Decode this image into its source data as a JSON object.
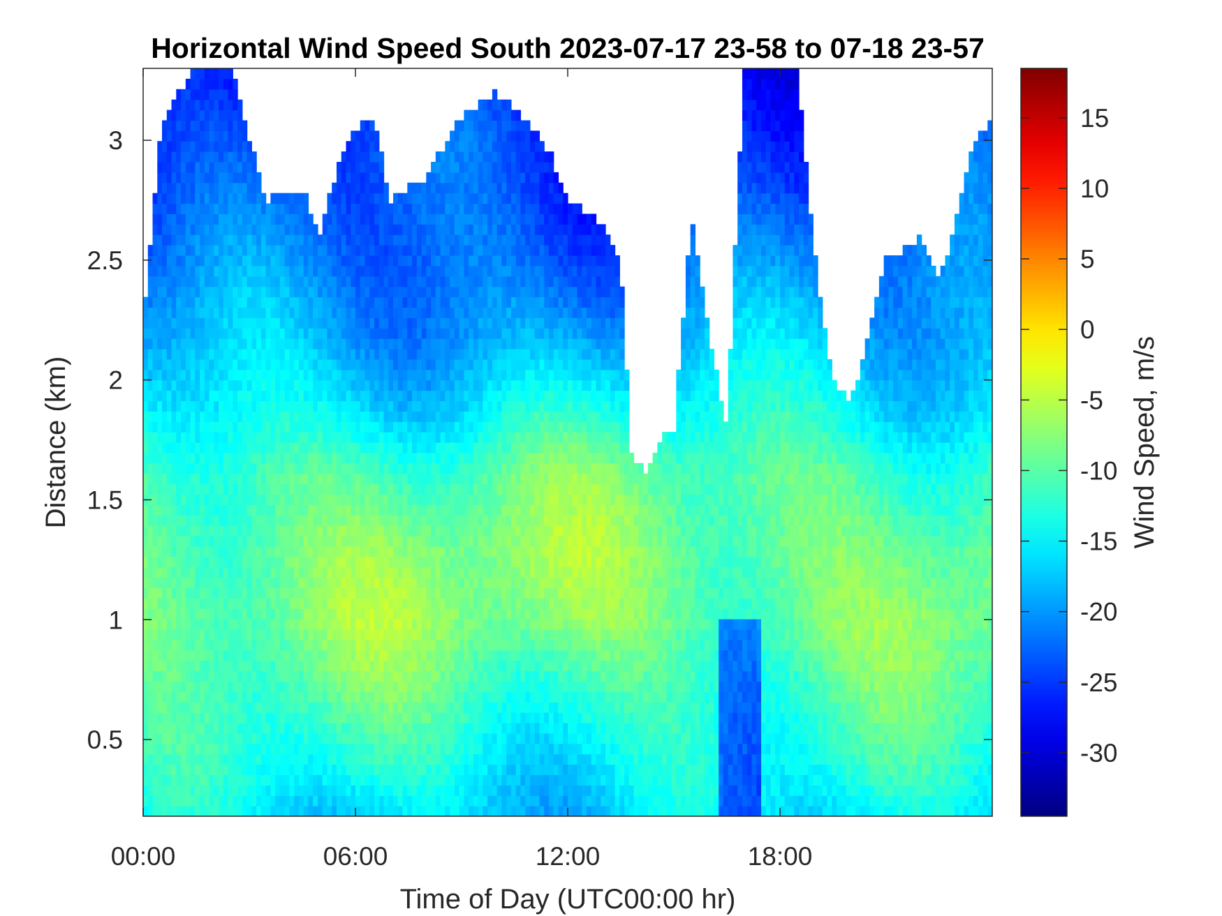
{
  "chart_data": {
    "type": "heatmap",
    "title": "Horizontal Wind Speed South 2023-07-17 23-58 to 07-18 23-57",
    "xlabel": "Time of Day (UTC00:00 hr)",
    "ylabel": "Distance (km)",
    "colorbar_label": "Wind Speed, m/s",
    "colormap": "jet",
    "x_ticks": [
      "00:00",
      "06:00",
      "12:00",
      "18:00"
    ],
    "x_tick_hours": [
      0,
      6,
      12,
      18
    ],
    "xlim_hours": [
      0,
      24
    ],
    "y_ticks": [
      "0.5",
      "1",
      "1.5",
      "2",
      "2.5",
      "3"
    ],
    "y_tick_values": [
      0.5,
      1,
      1.5,
      2,
      2.5,
      3
    ],
    "ylim_km": [
      0.18,
      3.3
    ],
    "colorbar_ticks": [
      "15",
      "10",
      "5",
      "0",
      "-5",
      "-10",
      "-15",
      "-20",
      "-25",
      "-30"
    ],
    "colorbar_tick_values": [
      15,
      10,
      5,
      0,
      -5,
      -10,
      -15,
      -20,
      -25,
      -30
    ],
    "color_range": [
      -34.5,
      18.5
    ],
    "upper_data_limit_km": [
      [
        0,
        2.25
      ],
      [
        0.5,
        3.05
      ],
      [
        1.0,
        3.2
      ],
      [
        1.5,
        3.3
      ],
      [
        2.5,
        3.3
      ],
      [
        3.0,
        3.0
      ],
      [
        3.5,
        2.75
      ],
      [
        4.5,
        2.8
      ],
      [
        5.0,
        2.6
      ],
      [
        5.5,
        2.9
      ],
      [
        6.0,
        3.05
      ],
      [
        6.5,
        3.1
      ],
      [
        7.0,
        2.75
      ],
      [
        8.0,
        2.85
      ],
      [
        9.0,
        3.1
      ],
      [
        10.0,
        3.2
      ],
      [
        11.0,
        3.05
      ],
      [
        11.5,
        2.95
      ],
      [
        12.0,
        2.75
      ],
      [
        12.5,
        2.7
      ],
      [
        13.0,
        2.65
      ],
      [
        13.5,
        2.5
      ],
      [
        13.8,
        1.7
      ],
      [
        14.2,
        1.6
      ],
      [
        14.6,
        1.75
      ],
      [
        15.0,
        1.8
      ],
      [
        15.5,
        2.7
      ],
      [
        16.0,
        2.2
      ],
      [
        16.5,
        1.8
      ],
      [
        16.8,
        2.8
      ],
      [
        17.0,
        3.3
      ],
      [
        18.5,
        3.3
      ],
      [
        19.0,
        2.5
      ],
      [
        19.5,
        2.0
      ],
      [
        20.0,
        1.9
      ],
      [
        21.0,
        2.5
      ],
      [
        22.0,
        2.6
      ],
      [
        22.5,
        2.4
      ],
      [
        23.0,
        2.7
      ],
      [
        23.5,
        3.0
      ],
      [
        24.0,
        3.1
      ]
    ],
    "mean_profile_ms": [
      [
        0.2,
        -16
      ],
      [
        0.5,
        -13
      ],
      [
        0.8,
        -10
      ],
      [
        1.0,
        -8
      ],
      [
        1.3,
        -8
      ],
      [
        1.6,
        -10
      ],
      [
        1.9,
        -15
      ],
      [
        2.2,
        -19
      ],
      [
        2.5,
        -22
      ],
      [
        2.8,
        -24
      ],
      [
        3.1,
        -25
      ],
      [
        3.3,
        -26
      ]
    ]
  }
}
